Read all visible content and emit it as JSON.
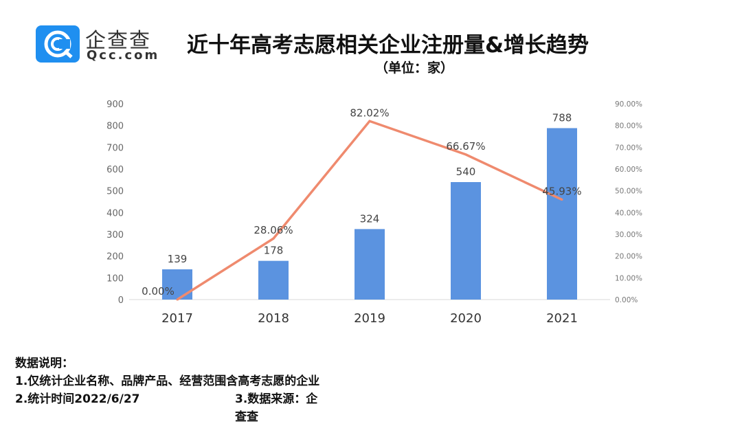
{
  "logo": {
    "cn": "企查查",
    "en": "Qcc.com"
  },
  "header": {
    "title": "近十年高考志愿相关企业注册量&增长趋势",
    "unit": "（单位：家）"
  },
  "chart_data": {
    "type": "bar+line",
    "categories": [
      "2017",
      "2018",
      "2019",
      "2020",
      "2021"
    ],
    "series": [
      {
        "type": "bar",
        "axis": "left",
        "values": [
          139,
          178,
          324,
          540,
          788
        ],
        "labels": [
          "139",
          "178",
          "324",
          "540",
          "788"
        ],
        "color": "#5b93e0"
      },
      {
        "type": "line",
        "axis": "right",
        "values": [
          0.0,
          28.06,
          82.02,
          66.67,
          45.93
        ],
        "labels": [
          "0.00%",
          "28.06%",
          "82.02%",
          "66.67%",
          "45.93%"
        ],
        "color": "#ef8a6e"
      }
    ],
    "ylim": [
      0,
      900
    ],
    "yticks": [
      "0",
      "100",
      "200",
      "300",
      "400",
      "500",
      "600",
      "700",
      "800",
      "900"
    ],
    "y2lim": [
      0,
      90
    ],
    "y2ticks": [
      "0.00%",
      "10.00%",
      "20.00%",
      "30.00%",
      "40.00%",
      "50.00%",
      "60.00%",
      "70.00%",
      "80.00%",
      "90.00%"
    ],
    "grid": false
  },
  "notes": {
    "heading": "数据说明：",
    "line1": "1.仅统计企业名称、品牌产品、经营范围含高考志愿的企业",
    "line2a": "2.统计时间2022/6/27",
    "line2b": "3.数据来源：企查查"
  }
}
